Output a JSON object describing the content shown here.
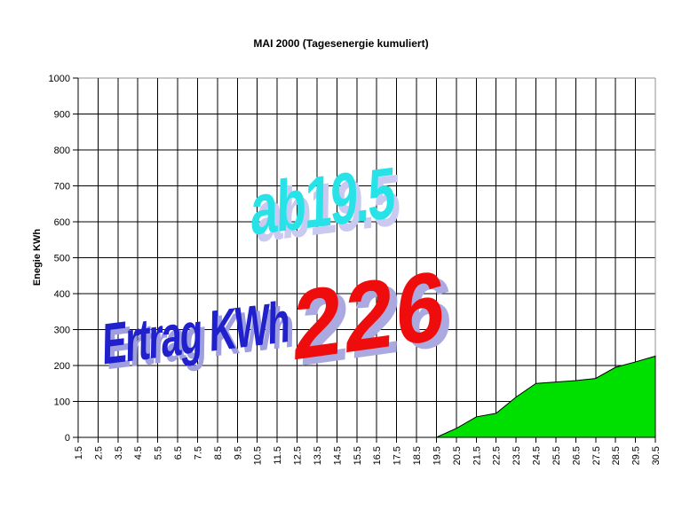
{
  "title": "MAI 2000 (Tagesenergie kumuliert)",
  "y_axis": {
    "label": "Enegie KWh",
    "ticks": [
      "0",
      "100",
      "200",
      "300",
      "400",
      "500",
      "600",
      "700",
      "800",
      "900",
      "1000"
    ]
  },
  "x_axis": {
    "ticks": [
      "1.5",
      "2.5",
      "3.5",
      "4.5",
      "5.5",
      "6.5",
      "7.5",
      "8.5",
      "9.5",
      "10.5",
      "11.5",
      "12.5",
      "13.5",
      "14.5",
      "15.5",
      "16.5",
      "17.5",
      "18.5",
      "19.5",
      "20.5",
      "21.5",
      "22.5",
      "23.5",
      "24.5",
      "25.5",
      "26.5",
      "27.5",
      "28.5",
      "29.5",
      "30.5"
    ]
  },
  "overlays": {
    "annotation_start": "ab19.5",
    "annotation_label": "Ertrag KWh",
    "annotation_total": "226"
  },
  "colors": {
    "area_fill": "#00e000",
    "grid": "#000000",
    "border_gray": "#909090",
    "annotation_cyan": "#27e3e8",
    "annotation_cyan_shadow": "#c9c9f2",
    "annotation_blue": "#2020cc",
    "annotation_blue_shadow": "#9f9fe0",
    "annotation_red": "#ee0c0c",
    "annotation_red_shadow": "#aaaae0"
  },
  "chart_data": {
    "type": "area",
    "title": "MAI 2000 (Tagesenergie kumuliert)",
    "xlabel": "",
    "ylabel": "Enegie KWh",
    "ylim": [
      0,
      1000
    ],
    "y_tick_step": 100,
    "grid": true,
    "legend": "none",
    "categories": [
      "1.5",
      "2.5",
      "3.5",
      "4.5",
      "5.5",
      "6.5",
      "7.5",
      "8.5",
      "9.5",
      "10.5",
      "11.5",
      "12.5",
      "13.5",
      "14.5",
      "15.5",
      "16.5",
      "17.5",
      "18.5",
      "19.5",
      "20.5",
      "21.5",
      "22.5",
      "23.5",
      "24.5",
      "25.5",
      "26.5",
      "27.5",
      "28.5",
      "29.5",
      "30.5"
    ],
    "values": [
      0,
      0,
      0,
      0,
      0,
      0,
      0,
      0,
      0,
      0,
      0,
      0,
      0,
      0,
      0,
      0,
      0,
      0,
      0,
      25,
      57,
      67,
      112,
      150,
      154,
      158,
      164,
      195,
      210,
      226
    ],
    "series_name": "Tagesenergie kumuliert",
    "annotations": [
      "ab19.5",
      "Ertrag KWh",
      "226"
    ]
  }
}
